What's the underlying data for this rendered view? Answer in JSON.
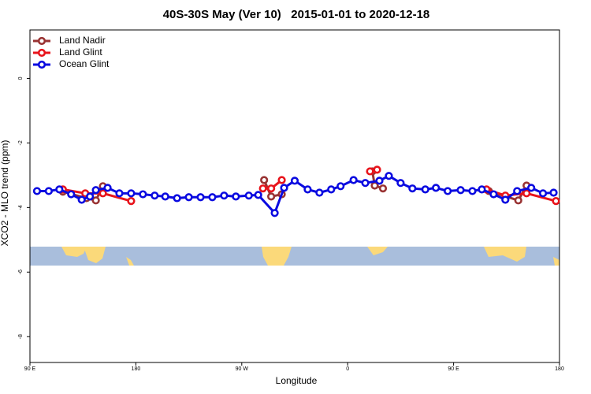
{
  "chart_data": {
    "type": "line",
    "title": "40S-30S May (Ver 10)   2015-01-01 to 2020-12-18",
    "xlabel": "Longitude",
    "ylabel": "XCO2 - MLO trend (ppm)",
    "xlim": [
      90,
      540
    ],
    "ylim": [
      -8.8,
      1.5
    ],
    "xticks": [
      {
        "value": 90,
        "label": "90 E"
      },
      180,
      {
        "value": 270,
        "label": "90 W"
      },
      {
        "value": 360,
        "label": "0"
      },
      {
        "value": 450,
        "label": "90 E"
      },
      {
        "value": 540,
        "label": "180"
      }
    ],
    "yticks": [
      0,
      -2,
      -4,
      -6,
      -8
    ],
    "legend": "top-left",
    "series": [
      {
        "name": "Land Nadir",
        "color": "#993333",
        "x": [
          118,
          138,
          146,
          152,
          null,
          289,
          295,
          304,
          null,
          381,
          383,
          390,
          null,
          480,
          505,
          512
        ],
        "values": [
          -3.51,
          -3.71,
          -3.78,
          -3.34,
          null,
          -3.15,
          -3.66,
          -3.59,
          null,
          -2.88,
          -3.32,
          -3.41,
          null,
          -3.49,
          -3.78,
          -3.32
        ]
      },
      {
        "name": "Land Glint",
        "color": "#e8141c",
        "x": [
          118,
          137,
          152,
          176,
          null,
          288,
          295,
          304,
          null,
          379,
          385,
          null,
          478,
          494,
          512,
          537
        ],
        "values": [
          -3.44,
          -3.56,
          -3.56,
          -3.8,
          null,
          -3.41,
          -3.41,
          -3.15,
          null,
          -2.88,
          -2.83,
          null,
          -3.44,
          -3.63,
          -3.56,
          -3.8
        ]
      },
      {
        "name": "Ocean Glint",
        "color": "#0a0ae0",
        "x": [
          96,
          106,
          115,
          125,
          134,
          141,
          146,
          156,
          166,
          176,
          186,
          196,
          205,
          215,
          225,
          235,
          245,
          255,
          265,
          276,
          284,
          298,
          306,
          315,
          326,
          336,
          346,
          354,
          365,
          375,
          387,
          395,
          405,
          415,
          426,
          435,
          445,
          456,
          466,
          474,
          484,
          494,
          504,
          516,
          526,
          535
        ],
        "values": [
          -3.49,
          -3.49,
          -3.44,
          -3.59,
          -3.76,
          -3.66,
          -3.46,
          -3.39,
          -3.56,
          -3.56,
          -3.59,
          -3.63,
          -3.66,
          -3.71,
          -3.68,
          -3.68,
          -3.68,
          -3.63,
          -3.66,
          -3.63,
          -3.61,
          -4.17,
          -3.39,
          -3.17,
          -3.44,
          -3.54,
          -3.44,
          -3.34,
          -3.15,
          -3.24,
          -3.17,
          -3.02,
          -3.24,
          -3.41,
          -3.44,
          -3.39,
          -3.49,
          -3.46,
          -3.49,
          -3.44,
          -3.59,
          -3.76,
          -3.49,
          -3.39,
          -3.56,
          -3.54
        ]
      }
    ]
  }
}
